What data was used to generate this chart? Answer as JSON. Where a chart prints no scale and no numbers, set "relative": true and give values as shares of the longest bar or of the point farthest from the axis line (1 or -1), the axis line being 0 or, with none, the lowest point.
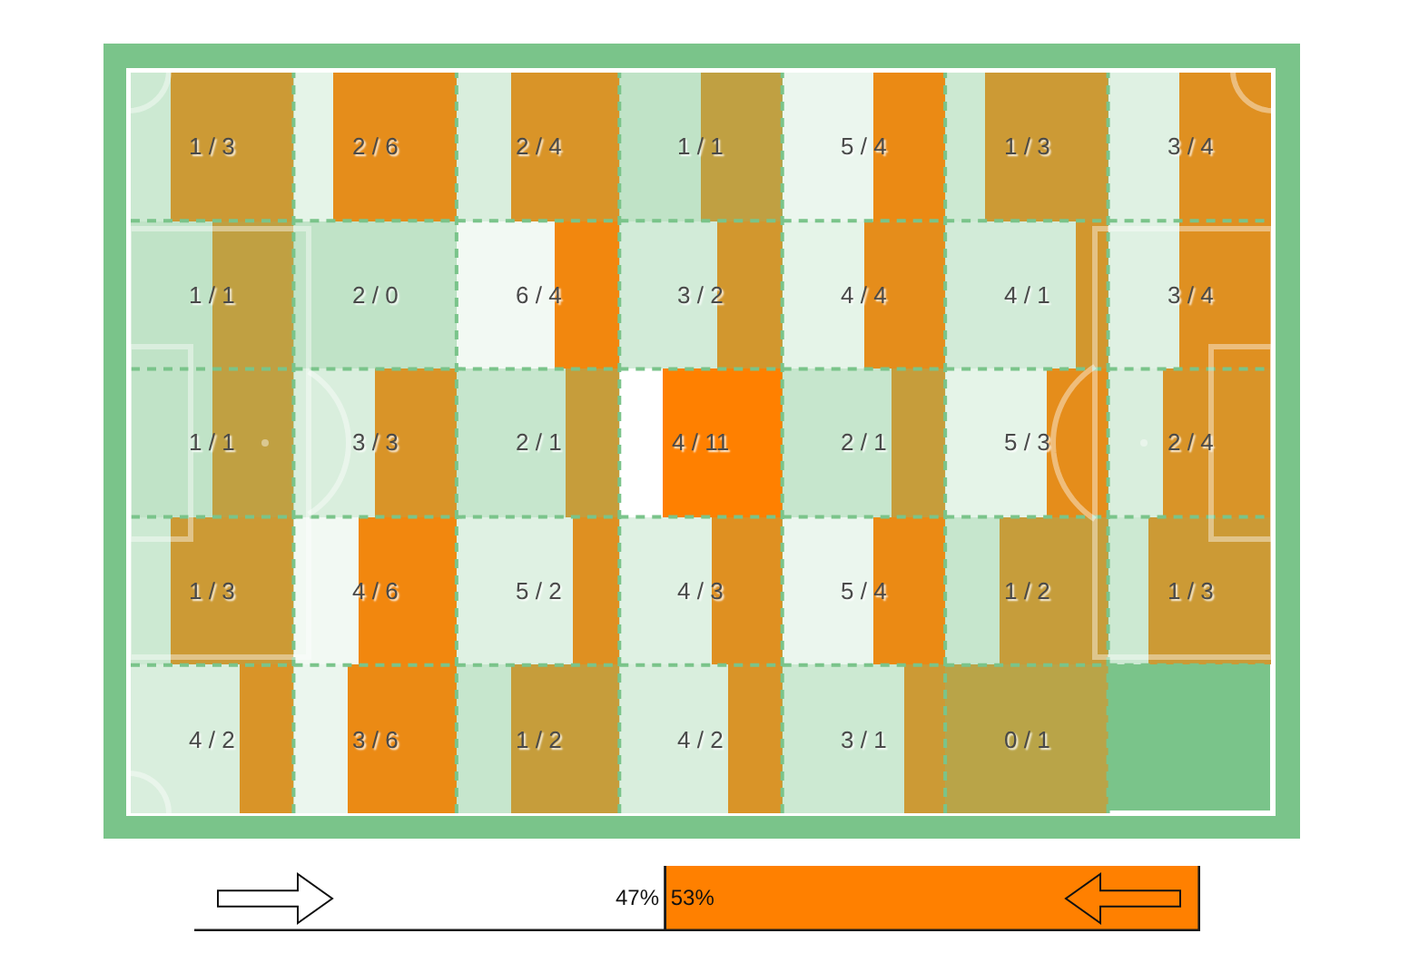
{
  "chart_data": [
    {
      "type": "bar",
      "orientation": "horizontal",
      "stacked": true,
      "relative": true,
      "grid": true,
      "categories": [
        null,
        null,
        null,
        null,
        null
      ],
      "series": [
        {
          "color": "#ffffff",
          "colors": [
            "#cce9d2",
            "#c0e3c7",
            "#c0e3c7",
            "#cce9d2",
            "#d9eedd"
          ],
          "values": [
            0.25,
            0.5,
            0.5,
            0.25,
            0.67
          ]
        },
        {
          "color": "#ff8000",
          "colors": [
            "#cc9a35",
            "#c0a042",
            "#c0a042",
            "#cc9a35",
            "#d99428"
          ],
          "values": [
            0.75,
            0.5,
            0.5,
            0.75,
            0.33
          ]
        }
      ],
      "annotations": [
        "1 / 3",
        "1 / 1",
        "1 / 1",
        "1 / 3",
        "4 / 2"
      ]
    },
    {
      "type": "bar",
      "orientation": "horizontal",
      "stacked": true,
      "relative": true,
      "grid": true,
      "categories": [
        null,
        null,
        null,
        null,
        null
      ],
      "series": [
        {
          "color": "#ffffff",
          "colors": [
            "#e5f4e8",
            "#c0e3c7",
            "#d9eedd",
            "#f2f9f3",
            "#ebf6ee"
          ],
          "values": [
            0.25,
            1,
            0.5,
            0.4,
            0.33
          ]
        },
        {
          "color": "#ff8000",
          "colors": [
            "#e58d1b",
            "#c0a042",
            "#d99428",
            "#f2870e",
            "#eb8a14"
          ],
          "values": [
            0.75,
            0,
            0.5,
            0.6,
            0.67
          ]
        }
      ],
      "annotations": [
        "2 / 6",
        "2 / 0",
        "3 / 3",
        "4 / 6",
        "3 / 6"
      ]
    },
    {
      "type": "bar",
      "orientation": "horizontal",
      "stacked": true,
      "relative": true,
      "grid": true,
      "categories": [
        null,
        null,
        null,
        null,
        null
      ],
      "series": [
        {
          "color": "#ffffff",
          "colors": [
            "#d9eedd",
            "#f2f9f3",
            "#c6e6cd",
            "#dff1e3",
            "#c6e6cd"
          ],
          "values": [
            0.33,
            0.6,
            0.67,
            0.71,
            0.33
          ]
        },
        {
          "color": "#ff8000",
          "colors": [
            "#d99428",
            "#f2870e",
            "#c69d3b",
            "#df9021",
            "#c69d3b"
          ],
          "values": [
            0.67,
            0.4,
            0.33,
            0.29,
            0.67
          ]
        }
      ],
      "annotations": [
        "2 / 4",
        "6 / 4",
        "2 / 1",
        "5 / 2",
        "1 / 2"
      ]
    },
    {
      "type": "bar",
      "orientation": "horizontal",
      "stacked": true,
      "relative": true,
      "grid": true,
      "categories": [
        null,
        null,
        null,
        null,
        null
      ],
      "series": [
        {
          "color": "#ffffff",
          "colors": [
            "#c0e3c7",
            "#d2ebd8",
            "#ffffff",
            "#dff1e3",
            "#d9eedd"
          ],
          "values": [
            0.5,
            0.6,
            0.27,
            0.57,
            0.67
          ]
        },
        {
          "color": "#ff8000",
          "colors": [
            "#c0a042",
            "#d2972e",
            "#ff8000",
            "#df9021",
            "#d99428"
          ],
          "values": [
            0.5,
            0.4,
            0.73,
            0.43,
            0.33
          ]
        }
      ],
      "annotations": [
        "1 / 1",
        "3 / 2",
        "4 / 11",
        "4 / 3",
        "4 / 2"
      ]
    },
    {
      "type": "bar",
      "orientation": "horizontal",
      "stacked": true,
      "relative": true,
      "grid": true,
      "categories": [
        null,
        null,
        null,
        null,
        null
      ],
      "series": [
        {
          "color": "#ffffff",
          "colors": [
            "#ebf6ee",
            "#e5f4e8",
            "#c6e6cd",
            "#ebf6ee",
            "#cce9d2"
          ],
          "values": [
            0.56,
            0.5,
            0.67,
            0.56,
            0.75
          ]
        },
        {
          "color": "#ff8000",
          "colors": [
            "#eb8a14",
            "#e58d1b",
            "#c69d3b",
            "#eb8a14",
            "#cc9a35"
          ],
          "values": [
            0.44,
            0.5,
            0.33,
            0.44,
            0.25
          ]
        }
      ],
      "annotations": [
        "5 / 4",
        "4 / 4",
        "2 / 1",
        "5 / 4",
        "3 / 1"
      ]
    },
    {
      "type": "bar",
      "orientation": "horizontal",
      "stacked": true,
      "relative": true,
      "grid": true,
      "categories": [
        null,
        null,
        null,
        null,
        null
      ],
      "series": [
        {
          "color": "#ffffff",
          "colors": [
            "#cce9d2",
            "#d2ebd8",
            "#e5f4e8",
            "#c6e6cd",
            "#b9e0c2"
          ],
          "values": [
            0.25,
            0.8,
            0.62,
            0.33,
            0
          ]
        },
        {
          "color": "#ff8000",
          "colors": [
            "#cc9a35",
            "#d2972e",
            "#e58d1b",
            "#c69d3b",
            "#b9a448"
          ],
          "values": [
            0.75,
            0.2,
            0.38,
            0.67,
            1
          ]
        }
      ],
      "annotations": [
        "1 / 3",
        "4 / 1",
        "5 / 3",
        "1 / 2",
        "0 / 1"
      ]
    },
    {
      "type": "bar",
      "orientation": "horizontal",
      "stacked": true,
      "relative": true,
      "grid": true,
      "categories": [
        null,
        null,
        null,
        null,
        null
      ],
      "series": [
        {
          "color": "#ffffff",
          "colors": [
            "#dff1e3",
            "#dff1e3",
            "#d9eedd",
            "#cce9d2",
            null
          ],
          "values": [
            0.43,
            0.43,
            0.33,
            0.25,
            null
          ]
        },
        {
          "color": "#ff8000",
          "colors": [
            "#df9021",
            "#df9021",
            "#d99428",
            "#cc9a35",
            null
          ],
          "values": [
            0.57,
            0.57,
            0.67,
            0.75,
            null
          ]
        }
      ],
      "annotations": [
        "3 / 4",
        "3 / 4",
        "2 / 4",
        "1 / 3"
      ]
    },
    {
      "type": "bar",
      "orientation": "horizontal",
      "stacked": true,
      "categories": [
        null
      ],
      "xlim": [
        0,
        100
      ],
      "series": [
        {
          "color": "#ffffff",
          "values": [
            47
          ],
          "value_labels": [
            "47%"
          ]
        },
        {
          "color": "#ff8000",
          "values": [
            53
          ],
          "value_labels": [
            "53%"
          ]
        }
      ]
    }
  ]
}
